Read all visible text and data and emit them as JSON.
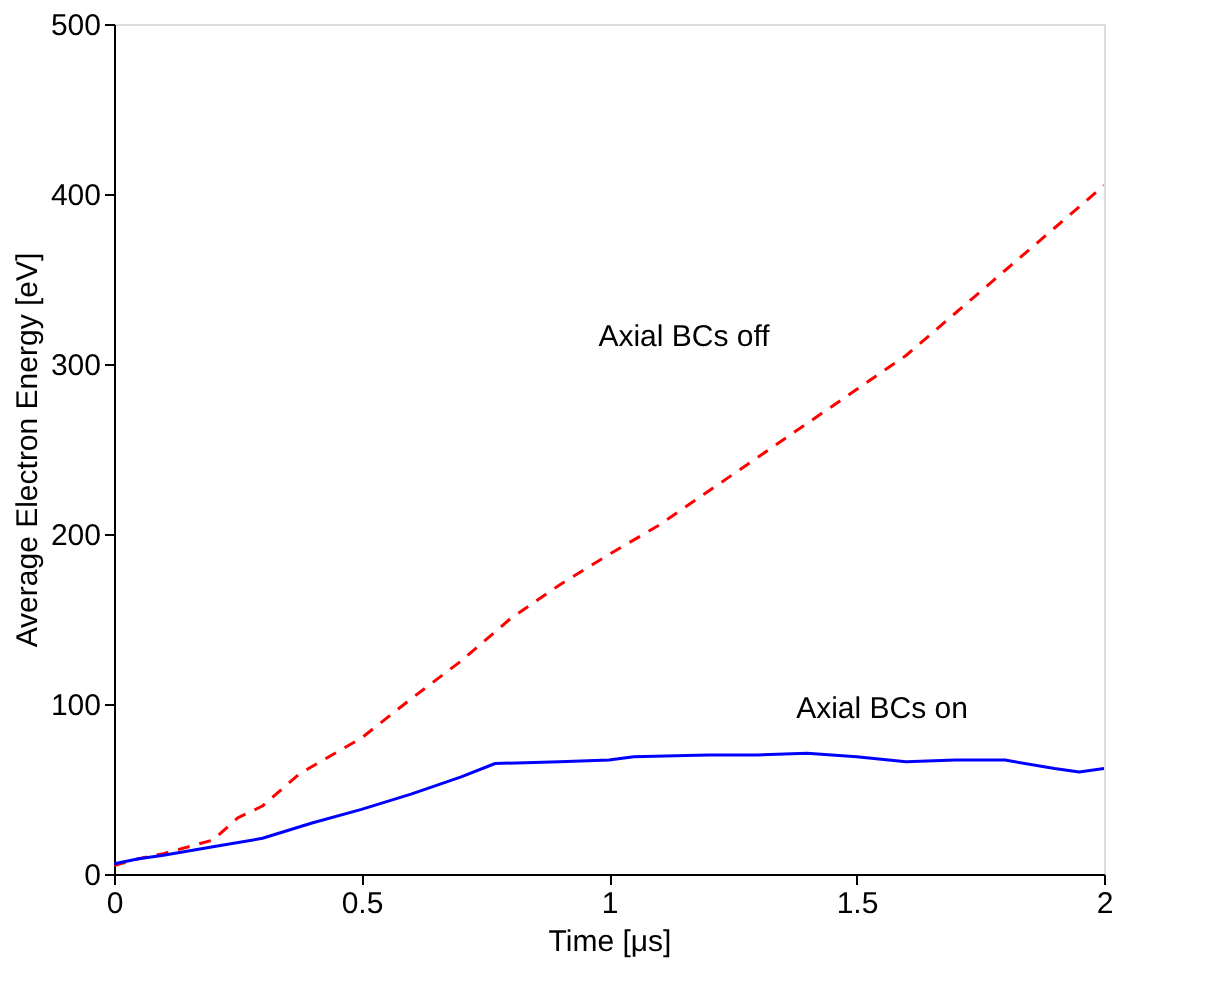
{
  "chart_data": {
    "type": "line",
    "xlabel": "Time [μs]",
    "ylabel": "Average Electron Energy [eV]",
    "xlim": [
      0,
      2
    ],
    "xticks": [
      0,
      0.5,
      1,
      1.5,
      2
    ],
    "ylim": [
      0,
      500
    ],
    "yticks": [
      0,
      100,
      200,
      300,
      400,
      500
    ],
    "grid": false,
    "series": [
      {
        "color": "#ff0000",
        "line_style": "dashed",
        "x": [
          0,
          0.05,
          0.1,
          0.2,
          0.25,
          0.3,
          0.375,
          0.5,
          0.6,
          0.7,
          0.8,
          0.9,
          1.0,
          1.1,
          1.2,
          1.3,
          1.4,
          1.5,
          1.6,
          1.7,
          1.8,
          1.9,
          2.0
        ],
        "values": [
          5,
          9,
          12,
          20,
          33,
          40,
          59,
          80,
          103,
          125,
          150,
          170,
          188,
          205,
          225,
          245,
          265,
          285,
          305,
          330,
          355,
          380,
          405
        ]
      },
      {
        "color": "#0000ff",
        "line_style": "solid",
        "x": [
          0,
          0.05,
          0.1,
          0.2,
          0.3,
          0.4,
          0.5,
          0.6,
          0.7,
          0.77,
          0.9,
          1.0,
          1.05,
          1.2,
          1.3,
          1.4,
          1.5,
          1.6,
          1.7,
          1.8,
          1.9,
          1.95,
          2.0
        ],
        "values": [
          6,
          9,
          11,
          16,
          21,
          30,
          38,
          47,
          57,
          65,
          66,
          67,
          69,
          70,
          70,
          71,
          69,
          66,
          67,
          67,
          62,
          60,
          62
        ]
      }
    ],
    "annotations": [
      "Axial BCs off",
      "Axial BCs on"
    ]
  }
}
